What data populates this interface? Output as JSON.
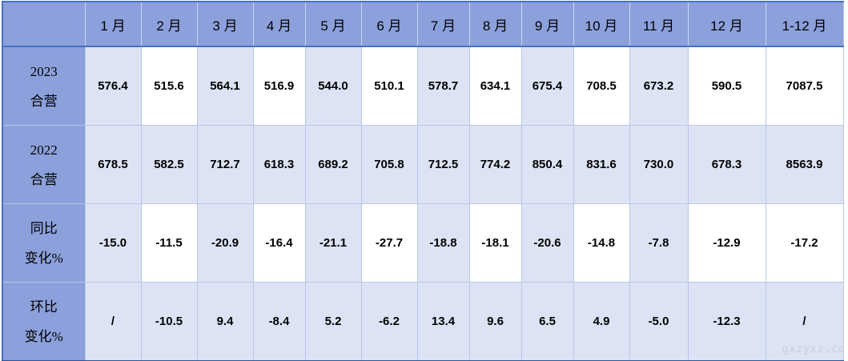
{
  "watermark": "gxzyxz.co",
  "colors": {
    "header_bg": "#8CA0DB",
    "band_bg": "#dde3f4",
    "gridline": "#b8c6e8",
    "header_rule": "#4472C4",
    "bottom_border": "#2F5597"
  },
  "chart_data": {
    "type": "table",
    "title": "",
    "columns": [
      "",
      "1 月",
      "2 月",
      "3 月",
      "4 月",
      "5 月",
      "6 月",
      "7 月",
      "8 月",
      "9 月",
      "10 月",
      "11 月",
      "12 月",
      "1-12 月"
    ],
    "rows": [
      {
        "label_lines": [
          "2023",
          "合营"
        ],
        "cells": [
          "576.4",
          "515.6",
          "564.1",
          "516.9",
          "544.0",
          "510.1",
          "578.7",
          "634.1",
          "675.4",
          "708.5",
          "673.2",
          "590.5",
          "7087.5"
        ]
      },
      {
        "label_lines": [
          "2022",
          "合营"
        ],
        "cells": [
          "678.5",
          "582.5",
          "712.7",
          "618.3",
          "689.2",
          "705.8",
          "712.5",
          "774.2",
          "850.4",
          "831.6",
          "730.0",
          "678.3",
          "8563.9"
        ]
      },
      {
        "label_lines": [
          "同比",
          "变化%"
        ],
        "cells": [
          "-15.0",
          "-11.5",
          "-20.9",
          "-16.4",
          "-21.1",
          "-27.7",
          "-18.8",
          "-18.1",
          "-20.6",
          "-14.8",
          "-7.8",
          "-12.9",
          "-17.2"
        ]
      },
      {
        "label_lines": [
          "环比",
          "变化%"
        ],
        "cells": [
          "/",
          "-10.5",
          "9.4",
          "-8.4",
          "5.2",
          "-6.2",
          "13.4",
          "9.6",
          "6.5",
          "4.9",
          "-5.0",
          "-12.3",
          "/"
        ]
      }
    ]
  }
}
